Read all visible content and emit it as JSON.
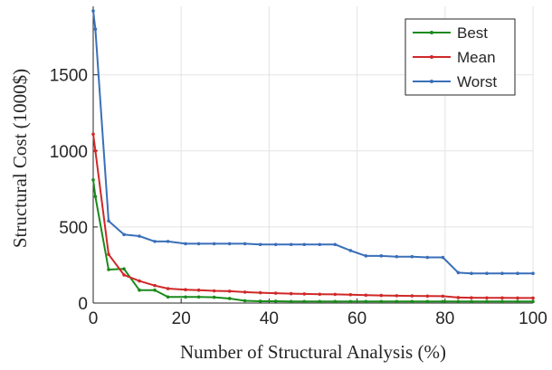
{
  "chart_data": {
    "type": "line",
    "title": "",
    "xlabel": "Number of Structural Analysis (%)",
    "ylabel": "Structural Cost (1000$)",
    "xlim": [
      0,
      100
    ],
    "ylim": [
      0,
      1950
    ],
    "xticks": [
      0,
      20,
      40,
      60,
      80,
      100
    ],
    "yticks": [
      0,
      500,
      1000,
      1500
    ],
    "grid": true,
    "legend_position": "top-right",
    "series": [
      {
        "name": "Best",
        "color": "#1a8a1a",
        "x": [
          0,
          0.5,
          3.5,
          7,
          10.5,
          14,
          17,
          21,
          24,
          27.5,
          31,
          34.5,
          38,
          41.5,
          45,
          48,
          51.5,
          55,
          58.5,
          62,
          65.5,
          69,
          72.5,
          76,
          79.5,
          83,
          86,
          89.5,
          93,
          96.5,
          100
        ],
        "y": [
          810,
          700,
          220,
          225,
          85,
          85,
          40,
          40,
          40,
          38,
          30,
          15,
          12,
          12,
          10,
          10,
          10,
          10,
          10,
          10,
          10,
          10,
          10,
          10,
          10,
          10,
          10,
          10,
          10,
          10,
          10
        ]
      },
      {
        "name": "Mean",
        "color": "#d02828",
        "x": [
          0,
          0.5,
          3.5,
          7,
          10.5,
          14,
          17,
          21,
          24,
          27.5,
          31,
          34.5,
          38,
          41.5,
          45,
          48,
          51.5,
          55,
          58.5,
          62,
          65.5,
          69,
          72.5,
          76,
          79.5,
          83,
          86,
          89.5,
          93,
          96.5,
          100
        ],
        "y": [
          1110,
          1000,
          320,
          185,
          145,
          115,
          95,
          88,
          85,
          80,
          78,
          72,
          68,
          65,
          62,
          60,
          58,
          57,
          55,
          52,
          50,
          48,
          47,
          46,
          45,
          36,
          35,
          34,
          34,
          33,
          33
        ]
      },
      {
        "name": "Worst",
        "color": "#3a6fb8",
        "x": [
          0,
          0.5,
          3.5,
          7,
          10.5,
          14,
          17,
          21,
          24,
          27.5,
          31,
          34.5,
          38,
          41.5,
          45,
          48,
          51.5,
          55,
          58.5,
          62,
          65.5,
          69,
          72.5,
          76,
          79.5,
          83,
          86,
          89.5,
          93,
          96.5,
          100
        ],
        "y": [
          1920,
          1800,
          540,
          450,
          440,
          405,
          405,
          390,
          390,
          390,
          390,
          390,
          385,
          385,
          385,
          385,
          385,
          385,
          345,
          310,
          310,
          305,
          305,
          300,
          300,
          200,
          195,
          195,
          195,
          195,
          195
        ]
      }
    ]
  }
}
